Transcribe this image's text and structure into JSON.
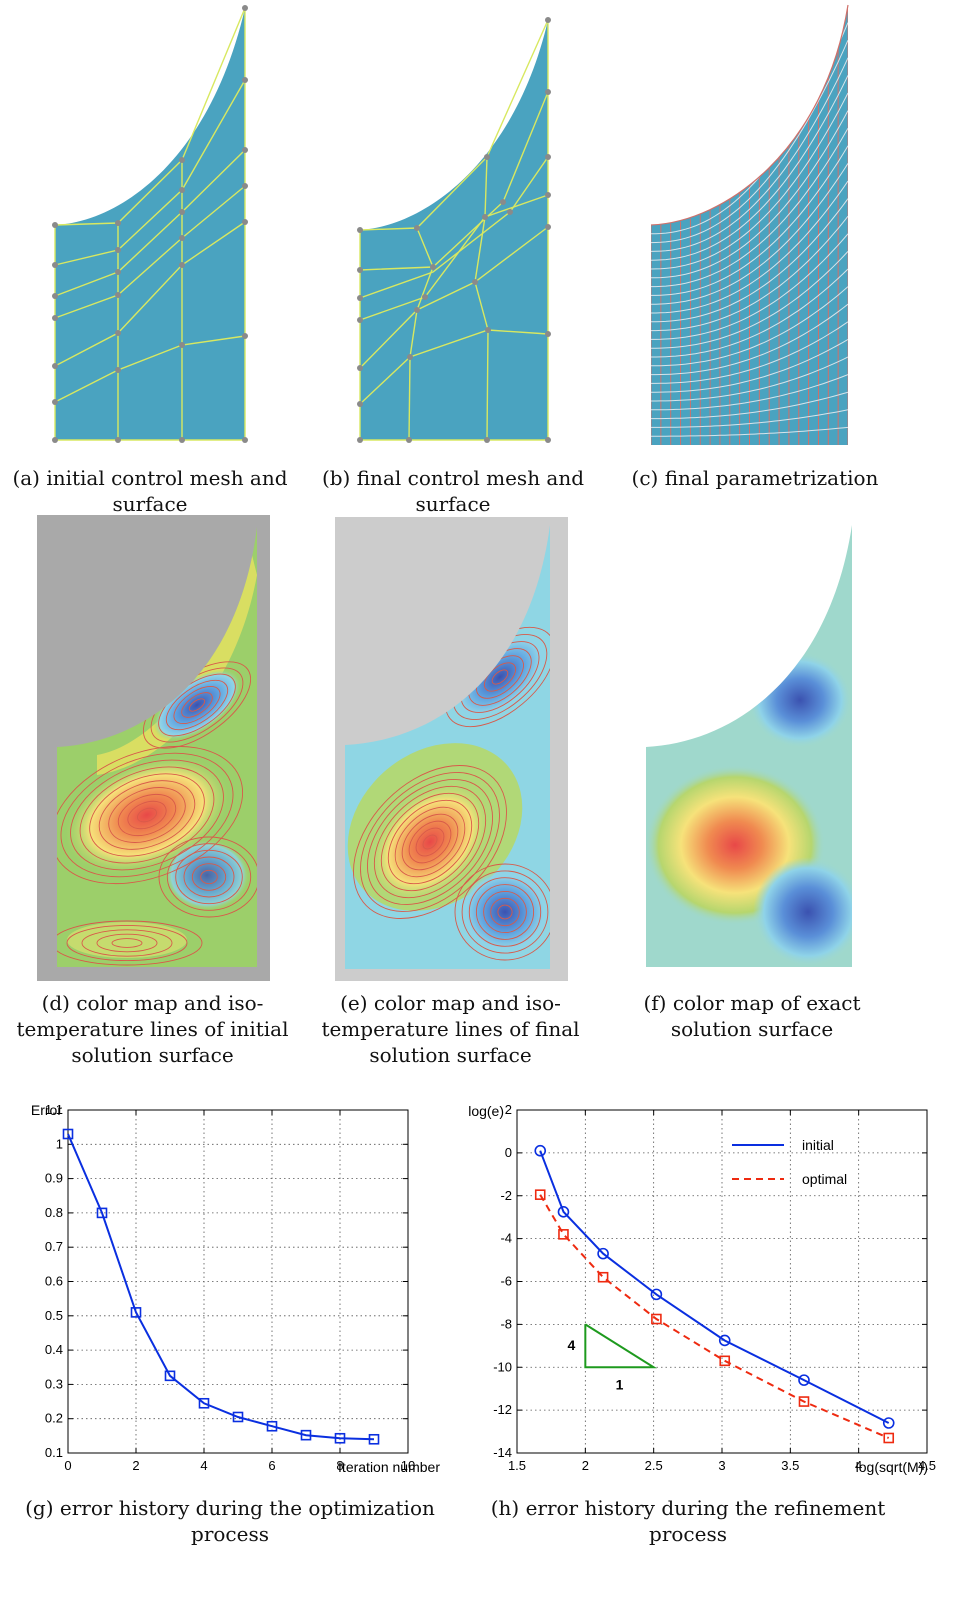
{
  "figure": {
    "captions": {
      "a": "(a) initial control mesh and surface",
      "b": "(b) final control mesh and surface",
      "c": "(c) final parametrization",
      "d": "(d) color map and iso-temperature lines of initial solution surface",
      "e": "(e) color map and iso-temperature lines of final solution surface",
      "f": "(f) color map of exact solution surface",
      "g": "(g) error history during the optimization process",
      "h": "(h) error history during the refinement process"
    },
    "colors": {
      "surface": "#4aa3c0",
      "mesh_line": "#d8e860",
      "control_point": "#8a8a8a",
      "param_line_v": "#d0706a",
      "param_line_h": "#d7e4ea",
      "background_d": "#a9a9a9",
      "background_e": "#cccccc"
    }
  },
  "chart_data": [
    {
      "id": "g",
      "type": "line",
      "title": "",
      "ylabel": "Error",
      "xlabel": "Iteration number",
      "xlim": [
        0,
        10
      ],
      "ylim": [
        0.1,
        1.1
      ],
      "xticks": [
        "0",
        "2",
        "4",
        "6",
        "8",
        "10"
      ],
      "yticks": [
        "0.1",
        "0.2",
        "0.3",
        "0.4",
        "0.5",
        "0.6",
        "0.7",
        "0.8",
        "0.9",
        "1",
        "1.1"
      ],
      "grid": true,
      "series": [
        {
          "color": "#0a2fe0",
          "marker": "square",
          "x": [
            0,
            1,
            2,
            3,
            4,
            5,
            6,
            7,
            8,
            9
          ],
          "y": [
            1.03,
            0.8,
            0.51,
            0.325,
            0.245,
            0.205,
            0.178,
            0.152,
            0.143,
            0.14
          ]
        }
      ]
    },
    {
      "id": "h",
      "type": "line",
      "title": "",
      "ylabel": "log(e)",
      "xlabel": "log(sqrt(M))",
      "xlim": [
        1.5,
        4.5
      ],
      "ylim": [
        -14,
        2
      ],
      "xticks": [
        "1.5",
        "2",
        "2.5",
        "3",
        "3.5",
        "4",
        "4.5"
      ],
      "yticks": [
        "-14",
        "-12",
        "-10",
        "-8",
        "-6",
        "-4",
        "-2",
        "0",
        "2"
      ],
      "grid": true,
      "legend": "top-right",
      "series": [
        {
          "name": "initial",
          "color": "#0a2fe0",
          "dash": "solid",
          "marker": "circle",
          "x": [
            1.67,
            1.84,
            2.13,
            2.52,
            3.02,
            3.6,
            4.22
          ],
          "y": [
            0.1,
            -2.75,
            -4.7,
            -6.6,
            -8.75,
            -10.6,
            -12.6
          ]
        },
        {
          "name": "optimal",
          "color": "#ee2a10",
          "dash": "dashed",
          "marker": "square",
          "x": [
            1.67,
            1.84,
            2.13,
            2.52,
            3.02,
            3.6,
            4.22
          ],
          "y": [
            -1.95,
            -3.8,
            -5.8,
            -7.75,
            -9.7,
            -11.6,
            -13.3
          ]
        }
      ],
      "slope_triangle": {
        "color": "#1e9a1e",
        "rise_label": "4",
        "run_label": "1",
        "x": [
          2.0,
          2.5
        ],
        "y": [
          -10,
          -8
        ]
      }
    }
  ]
}
